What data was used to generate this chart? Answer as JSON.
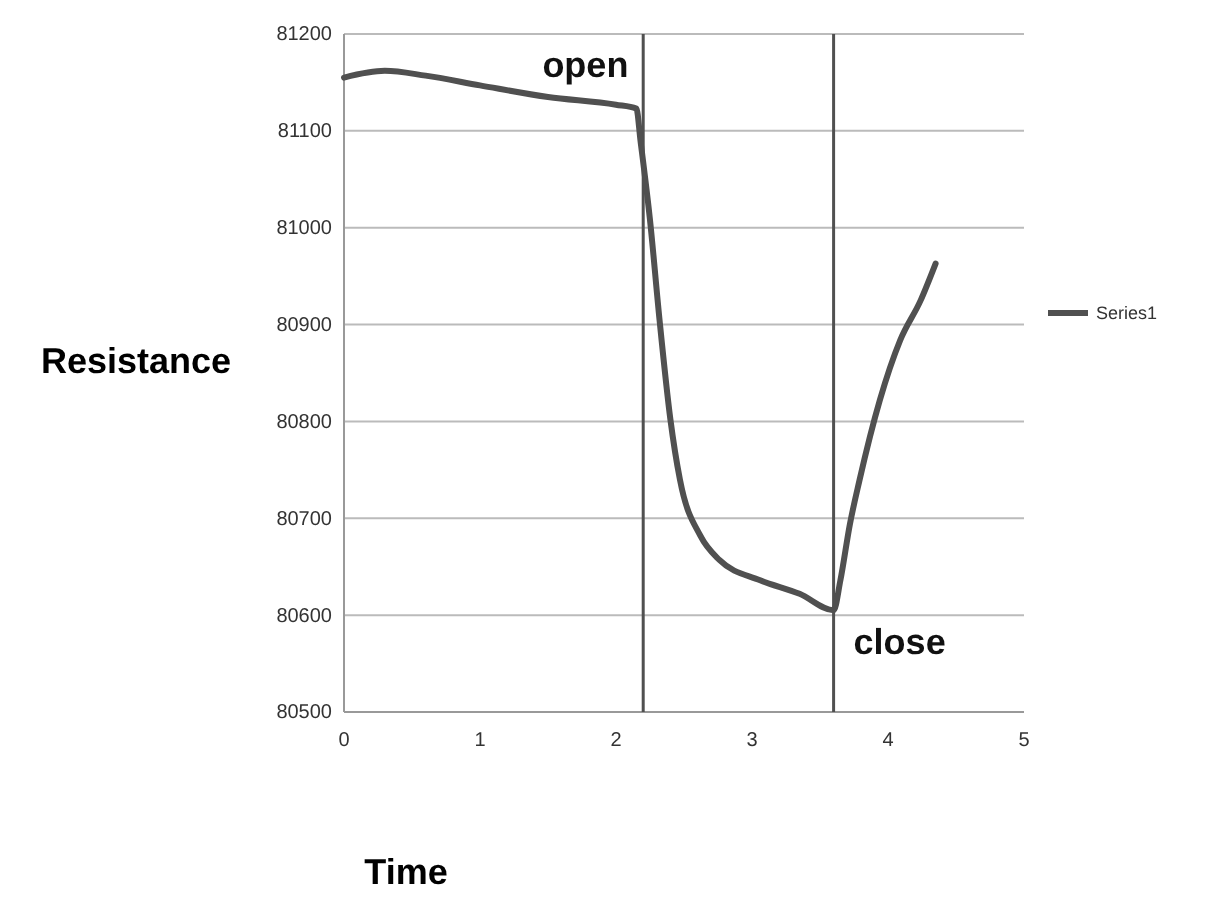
{
  "chart_data": {
    "type": "line",
    "xlabel": "Time",
    "ylabel": "Resistance",
    "xlim": [
      0,
      5
    ],
    "xticks": [
      0,
      1,
      2,
      3,
      4,
      5
    ],
    "ylim": [
      80500,
      81200
    ],
    "yticks": [
      80500,
      80600,
      80700,
      80800,
      80900,
      81000,
      81100,
      81200
    ],
    "grid": "y",
    "legend": "right",
    "marker": "none",
    "line_style": "solid",
    "series": [
      {
        "name": "Series1",
        "color": "#505050",
        "x": [
          0,
          0.3,
          0.6,
          1.0,
          1.5,
          2.0,
          2.15,
          2.18,
          2.25,
          2.32,
          2.4,
          2.47,
          2.62,
          2.76,
          3.06,
          3.35,
          3.6,
          3.65,
          3.72,
          3.79,
          3.94,
          4.09,
          4.24,
          4.35
        ],
        "values": [
          81155,
          81162,
          81157,
          81147,
          81135,
          81127,
          81123,
          81090,
          81008,
          80905,
          80802,
          80740,
          80682,
          80657,
          80636,
          80622,
          80605,
          80636,
          80694,
          80739,
          80822,
          80884,
          80925,
          80963
        ]
      }
    ],
    "ref_lines": [
      {
        "axis": "x",
        "value": 2.2,
        "color": "#505050"
      },
      {
        "axis": "x",
        "value": 3.6,
        "color": "#505050"
      }
    ],
    "annotations": [
      {
        "text": "open",
        "x": 2.15,
        "y": 81123
      },
      {
        "text": "close",
        "x": 3.6,
        "y": 80605
      }
    ]
  }
}
